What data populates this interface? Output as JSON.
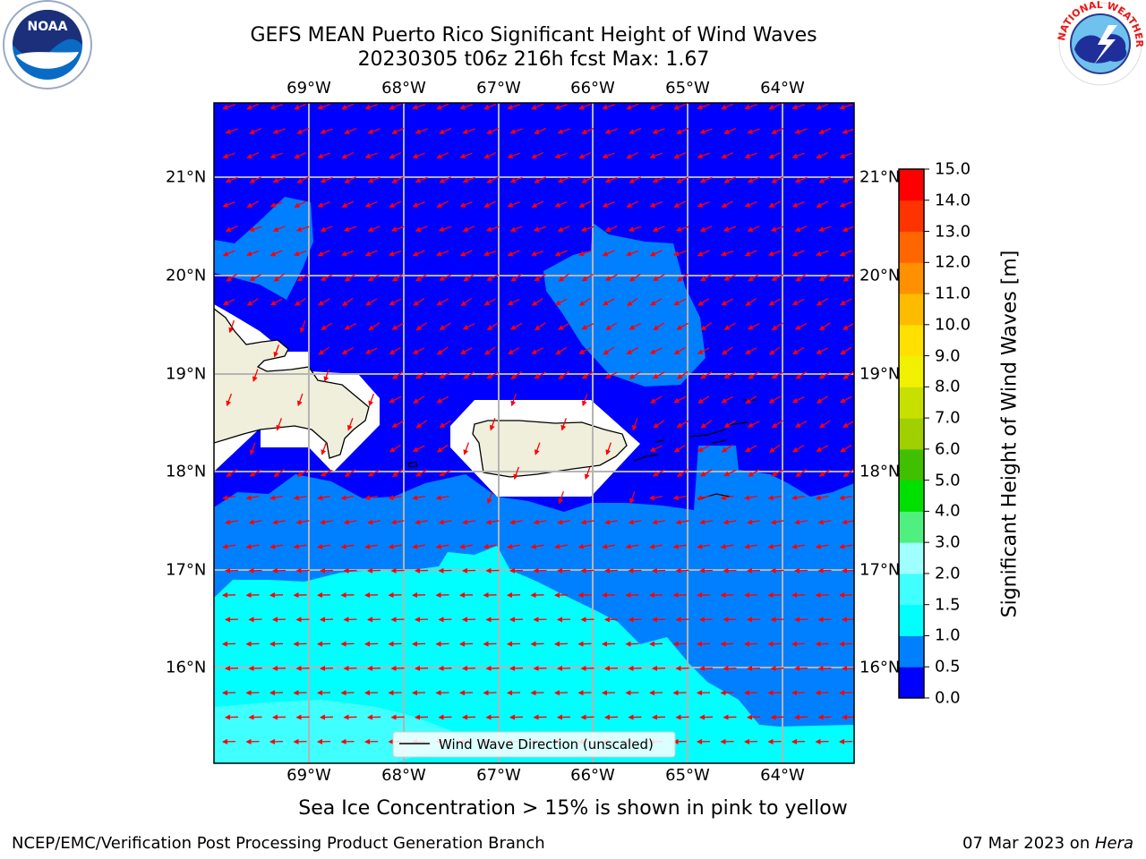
{
  "title": {
    "line1": "GEFS MEAN Puerto Rico Significant Height of Wind Waves",
    "line2": "20230305 t06z 216h fcst   Max: 1.67"
  },
  "map": {
    "lon_labels": [
      "69°W",
      "68°W",
      "67°W",
      "66°W",
      "65°W",
      "64°W"
    ],
    "lat_labels": [
      "21°N",
      "20°N",
      "19°N",
      "18°N",
      "17°N",
      "16°N"
    ],
    "lon_values": [
      -69,
      -68,
      -67,
      -66,
      -65,
      -64
    ],
    "lat_values": [
      21,
      20,
      19,
      18,
      17,
      16
    ],
    "lon_range": [
      -70.0,
      -63.25
    ],
    "lat_range": [
      15.0,
      21.75
    ],
    "gridlines": true,
    "legend_label": "Wind Wave Direction (unscaled)",
    "arrow_color": "#ff0000",
    "land_color": "#efefdc",
    "ocean_colors": {
      "0.0-0.5": "#0000ff",
      "0.5-1.0": "#0080ff",
      "1.0-1.5": "#00ffff",
      "1.5-2.0": "#40ffff"
    }
  },
  "colorbar": {
    "label": "Significant Height of Wind Waves [m]",
    "ticks": [
      "0.0",
      "0.5",
      "1.0",
      "1.5",
      "2.0",
      "3.0",
      "4.0",
      "5.0",
      "6.0",
      "7.0",
      "8.0",
      "9.0",
      "10.0",
      "11.0",
      "12.0",
      "13.0",
      "14.0",
      "15.0"
    ],
    "colors": [
      "#0000ff",
      "#0080ff",
      "#00ffff",
      "#40ffff",
      "#a0ffff",
      "#50f080",
      "#00e000",
      "#40c000",
      "#a0d000",
      "#c8e000",
      "#f0f000",
      "#ffe000",
      "#ffbb00",
      "#ff9000",
      "#ff6600",
      "#ff3300",
      "#ff0000"
    ]
  },
  "logos": {
    "left": "NOAA",
    "right": "NATIONAL WEATHER SERVICE"
  },
  "note": "Sea Ice Concentration > 15% is shown in pink to yellow",
  "footer": {
    "left": "NCEP/EMC/Verification Post Processing Product Generation Branch",
    "date": "07 Mar 2023 on ",
    "host": "Hera"
  }
}
